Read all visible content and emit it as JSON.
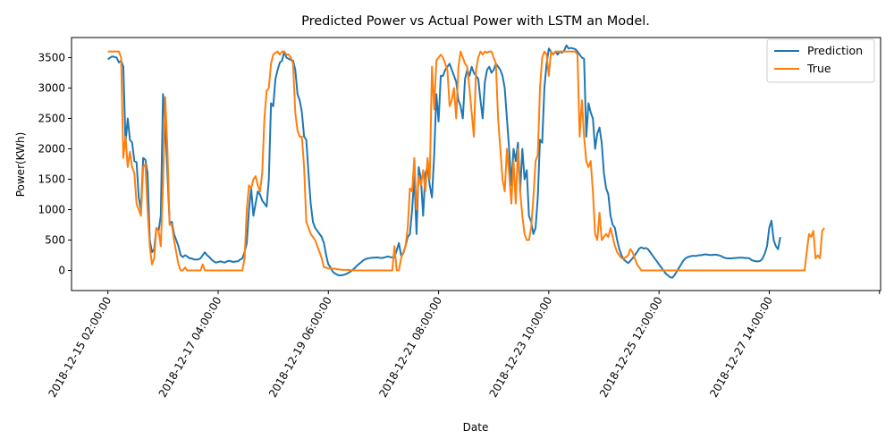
{
  "chart_data": {
    "type": "line",
    "title": "Predicted Power vs Actual Power with LSTM an Model.",
    "xlabel": "Date",
    "ylabel": "Power(KWh)",
    "ylim": [
      -330,
      3830
    ],
    "yticks": [
      0,
      500,
      1000,
      1500,
      2000,
      2500,
      3000,
      3500
    ],
    "xticks": [
      {
        "pos": 0,
        "label": "2018-12-15 02:00:00"
      },
      {
        "pos": 50,
        "label": "2018-12-17 04:00:00"
      },
      {
        "pos": 100,
        "label": "2018-12-19 06:00:00"
      },
      {
        "pos": 150,
        "label": "2018-12-21 08:00:00"
      },
      {
        "pos": 200,
        "label": "2018-12-23 10:00:00"
      },
      {
        "pos": 250,
        "label": "2018-12-25 12:00:00"
      },
      {
        "pos": 300,
        "label": "2018-12-27 14:00:00"
      },
      {
        "pos": 350,
        "label": ""
      }
    ],
    "xlim": [
      -16.5,
      350.5
    ],
    "legend": {
      "position": "top-right"
    },
    "grid": false,
    "series": [
      {
        "name": "Prediction",
        "color": "#1f77b4",
        "values": [
          3470,
          3500,
          3520,
          3510,
          3500,
          3420,
          3450,
          3350,
          2100,
          2500,
          2150,
          2100,
          1800,
          1780,
          1200,
          1000,
          1850,
          1820,
          1600,
          500,
          300,
          350,
          700,
          650,
          900,
          2900,
          2400,
          1600,
          780,
          800,
          600,
          500,
          400,
          250,
          220,
          250,
          230,
          200,
          200,
          180,
          180,
          180,
          200,
          250,
          300,
          250,
          220,
          180,
          150,
          130,
          140,
          150,
          140,
          130,
          150,
          160,
          150,
          140,
          150,
          150,
          180,
          200,
          300,
          450,
          1000,
          1350,
          900,
          1100,
          1300,
          1250,
          1150,
          1100,
          1050,
          1500,
          2750,
          2700,
          3150,
          3300,
          3420,
          3450,
          3600,
          3500,
          3480,
          3460,
          3450,
          3300,
          2900,
          2800,
          2600,
          2200,
          2150,
          1600,
          1100,
          800,
          700,
          650,
          600,
          550,
          450,
          250,
          100,
          50,
          -20,
          -50,
          -70,
          -80,
          -80,
          -70,
          -60,
          -40,
          -20,
          10,
          40,
          80,
          110,
          140,
          170,
          190,
          200,
          205,
          210,
          210,
          215,
          210,
          205,
          210,
          220,
          230,
          220,
          215,
          220,
          330,
          450,
          250,
          280,
          400,
          550,
          600,
          1000,
          1550,
          600,
          1700,
          1500,
          900,
          1600,
          1700,
          1400,
          1200,
          1900,
          2900,
          2450,
          3200,
          3200,
          3300,
          3350,
          3400,
          3300,
          3200,
          3100,
          2800,
          2700,
          2500,
          3150,
          3300,
          3200,
          3350,
          3250,
          3200,
          3150,
          2800,
          2500,
          3100,
          3300,
          3350,
          3250,
          3300,
          3400,
          3350,
          3300,
          3200,
          3000,
          2500,
          2000,
          1400,
          2000,
          1800,
          2100,
          1300,
          2000,
          1500,
          1650,
          900,
          800,
          600,
          700,
          1200,
          2150,
          2100,
          3000,
          3400,
          3650,
          3600,
          3550,
          3600,
          3550,
          3600,
          3580,
          3620,
          3700,
          3650,
          3660,
          3650,
          3640,
          3600,
          3550,
          3500,
          3480,
          2200,
          2750,
          2600,
          2500,
          2000,
          2250,
          2350,
          2100,
          1600,
          1350,
          1250,
          900,
          750,
          700,
          500,
          350,
          250,
          180,
          150,
          120,
          160,
          200,
          250,
          300,
          360,
          380,
          360,
          370,
          350,
          300,
          250,
          200,
          150,
          100,
          50,
          0,
          -50,
          -80,
          -110,
          -120,
          -80,
          -20,
          40,
          100,
          160,
          200,
          220,
          230,
          240,
          240,
          240,
          250,
          250,
          260,
          265,
          260,
          255,
          255,
          260,
          260,
          250,
          240,
          220,
          205,
          200,
          200,
          200,
          205,
          205,
          210,
          210,
          210,
          205,
          205,
          200,
          170,
          160,
          150,
          150,
          160,
          200,
          280,
          400,
          700,
          820,
          500,
          400,
          350,
          550
        ]
      },
      {
        "name": "True",
        "color": "#ff7f0e",
        "values": [
          3600,
          3600,
          3600,
          3600,
          3600,
          3600,
          3500,
          1850,
          2200,
          1700,
          1950,
          1700,
          1600,
          1100,
          1000,
          900,
          1700,
          1750,
          1000,
          400,
          100,
          200,
          700,
          650,
          400,
          1400,
          2850,
          2000,
          750,
          750,
          500,
          300,
          100,
          0,
          0,
          50,
          0,
          0,
          0,
          0,
          0,
          0,
          0,
          100,
          0,
          0,
          0,
          0,
          0,
          0,
          0,
          0,
          0,
          0,
          0,
          0,
          0,
          0,
          0,
          0,
          0,
          0,
          200,
          1000,
          1400,
          1350,
          1500,
          1550,
          1400,
          1300,
          1600,
          2500,
          2950,
          3000,
          3400,
          3550,
          3580,
          3600,
          3550,
          3600,
          3600,
          3550,
          3550,
          3500,
          3400,
          2600,
          2300,
          2200,
          2200,
          1700,
          800,
          700,
          600,
          550,
          500,
          400,
          300,
          200,
          50,
          50,
          30,
          30,
          30,
          30,
          20,
          20,
          10,
          10,
          10,
          10,
          5,
          5,
          0,
          0,
          0,
          0,
          0,
          0,
          0,
          0,
          0,
          0,
          0,
          0,
          0,
          0,
          0,
          0,
          0,
          0,
          400,
          0,
          0,
          200,
          300,
          400,
          700,
          1350,
          1300,
          1850,
          1000,
          1550,
          1400,
          1650,
          1300,
          1850,
          1500,
          3350,
          2650,
          3450,
          3500,
          3550,
          3500,
          3400,
          3300,
          2700,
          2800,
          3000,
          2500,
          3350,
          3600,
          3500,
          3400,
          3350,
          3000,
          2600,
          2200,
          3300,
          3500,
          3600,
          3550,
          3600,
          3580,
          3600,
          3600,
          3500,
          3400,
          2500,
          2000,
          1500,
          1300,
          2000,
          1600,
          1100,
          1800,
          1100,
          2000,
          1300,
          900,
          600,
          500,
          500,
          700,
          1200,
          1800,
          1900,
          3000,
          3500,
          3600,
          3550,
          3200,
          3600,
          3550,
          3600,
          3600,
          3600,
          3600,
          3600,
          3600,
          3600,
          3600,
          3600,
          3600,
          3550,
          2200,
          2800,
          2200,
          1800,
          1700,
          1800,
          1300,
          600,
          500,
          950,
          500,
          550,
          600,
          550,
          700,
          550,
          400,
          300,
          250,
          200,
          200,
          220,
          250,
          350,
          300,
          200,
          100,
          50,
          0,
          0,
          0,
          0,
          0,
          0,
          0,
          0,
          0,
          0,
          0,
          0,
          0,
          0,
          0,
          0,
          0,
          0,
          0,
          0,
          0,
          0,
          0,
          0,
          0,
          0,
          0,
          0,
          0,
          0,
          0,
          0,
          0,
          0,
          0,
          0,
          0,
          0,
          0,
          0,
          0,
          0,
          0,
          0,
          0,
          0,
          0,
          0,
          0,
          0,
          0,
          0,
          0,
          0,
          0,
          0,
          0,
          0,
          0,
          0,
          0,
          0,
          0,
          0,
          0,
          0,
          0,
          0,
          0,
          0,
          0,
          0,
          0,
          0,
          0,
          300,
          600,
          550,
          650,
          200,
          250,
          200,
          650,
          700
        ]
      }
    ]
  }
}
